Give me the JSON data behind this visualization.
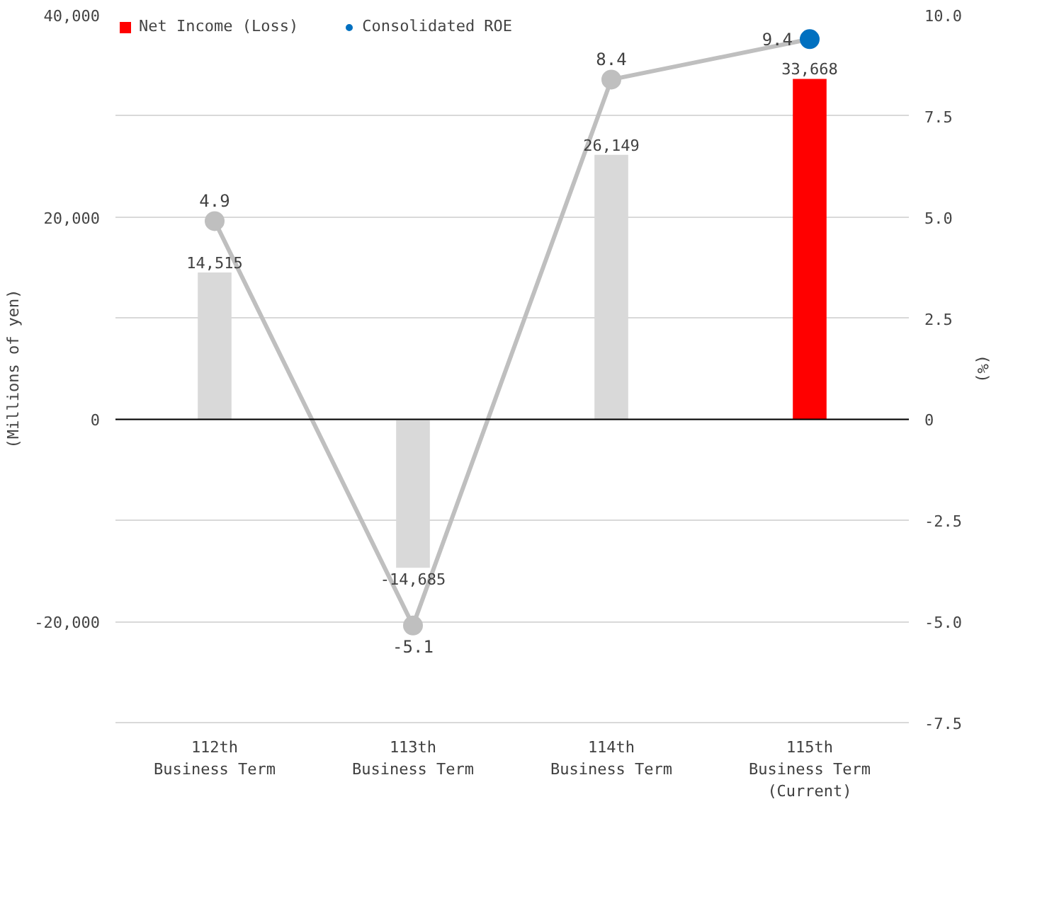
{
  "chart_data": {
    "type": "bar",
    "categories": [
      "112th\nBusiness Term",
      "113th\nBusiness Term",
      "114th\nBusiness Term",
      "115th\nBusiness Term\n(Current)"
    ],
    "ylabel": "(Millions of yen)",
    "y2label": "(%)",
    "series": [
      {
        "name": "Net Income (Loss)",
        "color": "#d9d9d9",
        "colors": [
          "#d9d9d9",
          "#d9d9d9",
          "#d9d9d9",
          "#ff0000"
        ],
        "values": [
          14515,
          -14685,
          26149,
          33668
        ],
        "value_labels": [
          "14,515",
          "-14,685",
          "26,149",
          "33,668"
        ]
      },
      {
        "name": "Consolidated ROE",
        "type": "line",
        "axis": "y2",
        "color": "#bfbfbf",
        "colors": [
          "#bfbfbf",
          "#bfbfbf",
          "#bfbfbf",
          "#0070c0"
        ],
        "marker": "circle",
        "values": [
          4.9,
          -5.1,
          8.4,
          9.4
        ],
        "value_labels": [
          "4.9",
          "-5.1",
          "8.4",
          "9.4"
        ]
      }
    ],
    "ylim": [
      -30000,
      40000
    ],
    "yticks": [
      {
        "value": -30000,
        "label": null
      },
      {
        "value": -20000,
        "label": "-20,000"
      },
      {
        "value": -10000,
        "label": null
      },
      {
        "value": 0,
        "label": "0"
      },
      {
        "value": 10000,
        "label": null
      },
      {
        "value": 20000,
        "label": "20,000"
      },
      {
        "value": 30000,
        "label": null
      },
      {
        "value": 40000,
        "label": "40,000"
      }
    ],
    "y2lim": [
      -7.5,
      10
    ],
    "y2ticks": [
      {
        "value": -7.5,
        "label": "-7.5"
      },
      {
        "value": -5,
        "label": "-5.0"
      },
      {
        "value": -2.5,
        "label": "-2.5"
      },
      0,
      {
        "value": 2.5,
        "label": "2.5"
      },
      {
        "value": 5,
        "label": "5.0"
      },
      {
        "value": 7.5,
        "label": "7.5"
      },
      {
        "value": 10,
        "label": "10.0"
      }
    ],
    "ref_lines": [
      {
        "axis": "y",
        "value": 0,
        "color": "#000000"
      }
    ],
    "grid": "y",
    "legend": "top"
  }
}
